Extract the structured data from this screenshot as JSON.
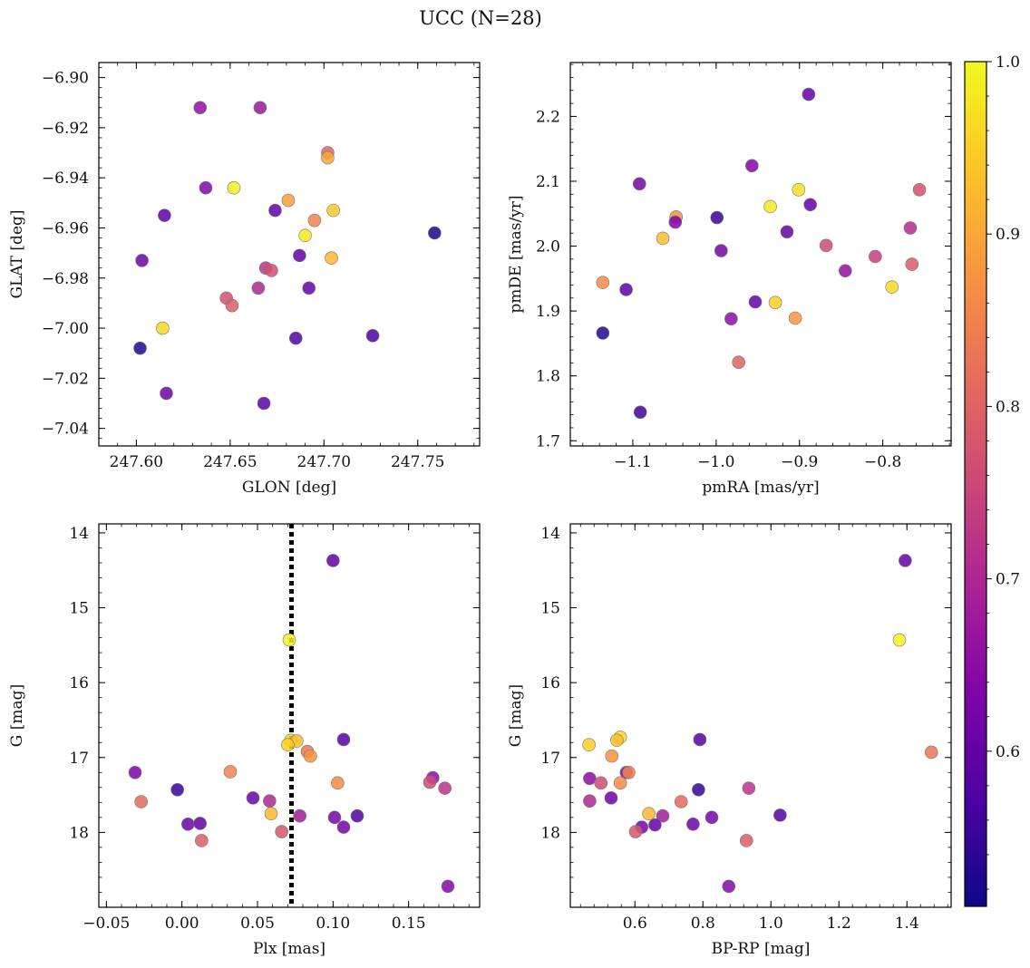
{
  "figure_title": "UCC (N=28)",
  "colorbar": {
    "tick_labels": [
      "0.6",
      "0.7",
      "0.8",
      "0.9",
      "1.0"
    ],
    "tick_values": [
      0.6,
      0.7,
      0.8,
      0.9,
      1.0
    ],
    "range": [
      0.51,
      1.0
    ],
    "colormap": "plasma"
  },
  "chart_data": [
    {
      "type": "scatter",
      "xlabel": "GLON [deg]",
      "ylabel": "GLAT [deg]",
      "xlim": [
        247.58,
        247.783
      ],
      "ylim": [
        -7.047,
        -6.894
      ],
      "xticks": [
        247.6,
        247.65,
        247.7,
        247.75
      ],
      "xtick_labels": [
        "247.60",
        "247.65",
        "247.70",
        "247.75"
      ],
      "yticks": [
        -6.9,
        -6.92,
        -6.94,
        -6.96,
        -6.98,
        -7.0,
        -7.02,
        -7.04
      ],
      "ytick_labels": [
        "−6.90",
        "−6.92",
        "−6.94",
        "−6.96",
        "−6.98",
        "−7.00",
        "−7.02",
        "−7.04"
      ],
      "points": [
        {
          "x": 247.634,
          "y": -6.912,
          "c": 0.66
        },
        {
          "x": 247.666,
          "y": -6.912,
          "c": 0.67
        },
        {
          "x": 247.702,
          "y": -6.93,
          "c": 0.8
        },
        {
          "x": 247.702,
          "y": -6.932,
          "c": 0.9
        },
        {
          "x": 247.652,
          "y": -6.944,
          "c": 0.99
        },
        {
          "x": 247.637,
          "y": -6.944,
          "c": 0.64
        },
        {
          "x": 247.681,
          "y": -6.949,
          "c": 0.89
        },
        {
          "x": 247.705,
          "y": -6.953,
          "c": 0.94
        },
        {
          "x": 247.674,
          "y": -6.953,
          "c": 0.6
        },
        {
          "x": 247.615,
          "y": -6.955,
          "c": 0.59
        },
        {
          "x": 247.695,
          "y": -6.957,
          "c": 0.85
        },
        {
          "x": 247.69,
          "y": -6.963,
          "c": 0.98
        },
        {
          "x": 247.759,
          "y": -6.962,
          "c": 0.52
        },
        {
          "x": 247.687,
          "y": -6.971,
          "c": 0.6
        },
        {
          "x": 247.704,
          "y": -6.972,
          "c": 0.92
        },
        {
          "x": 247.603,
          "y": -6.973,
          "c": 0.61
        },
        {
          "x": 247.669,
          "y": -6.976,
          "c": 0.72
        },
        {
          "x": 247.672,
          "y": -6.977,
          "c": 0.77
        },
        {
          "x": 247.692,
          "y": -6.984,
          "c": 0.6
        },
        {
          "x": 247.665,
          "y": -6.984,
          "c": 0.7
        },
        {
          "x": 247.648,
          "y": -6.988,
          "c": 0.77
        },
        {
          "x": 247.651,
          "y": -6.991,
          "c": 0.79
        },
        {
          "x": 247.614,
          "y": -7.0,
          "c": 0.96
        },
        {
          "x": 247.726,
          "y": -7.003,
          "c": 0.57
        },
        {
          "x": 247.685,
          "y": -7.004,
          "c": 0.58
        },
        {
          "x": 247.602,
          "y": -7.008,
          "c": 0.53
        },
        {
          "x": 247.616,
          "y": -7.026,
          "c": 0.61
        },
        {
          "x": 247.668,
          "y": -7.03,
          "c": 0.59
        }
      ]
    },
    {
      "type": "scatter",
      "xlabel": "pmRA [mas/yr]",
      "ylabel": "pmDE [mas/yr]",
      "xlim": [
        -1.175,
        -0.718
      ],
      "ylim": [
        1.692,
        2.283
      ],
      "xticks": [
        -1.1,
        -1.0,
        -0.9,
        -0.8
      ],
      "xtick_labels": [
        "−1.1",
        "−1.0",
        "−0.9",
        "−0.8"
      ],
      "yticks": [
        1.7,
        1.8,
        1.9,
        2.0,
        2.1,
        2.2
      ],
      "ytick_labels": [
        "1.7",
        "1.8",
        "1.9",
        "2.0",
        "2.1",
        "2.2"
      ],
      "points": [
        {
          "x": -0.889,
          "y": 2.234,
          "c": 0.6
        },
        {
          "x": -0.957,
          "y": 2.124,
          "c": 0.64
        },
        {
          "x": -1.092,
          "y": 2.096,
          "c": 0.62
        },
        {
          "x": -0.901,
          "y": 2.087,
          "c": 0.97
        },
        {
          "x": -0.756,
          "y": 2.087,
          "c": 0.77
        },
        {
          "x": -0.887,
          "y": 2.064,
          "c": 0.6
        },
        {
          "x": -0.935,
          "y": 2.061,
          "c": 0.98
        },
        {
          "x": -1.048,
          "y": 2.045,
          "c": 0.87
        },
        {
          "x": -0.999,
          "y": 2.044,
          "c": 0.55
        },
        {
          "x": -1.049,
          "y": 2.037,
          "c": 0.63
        },
        {
          "x": -0.767,
          "y": 2.028,
          "c": 0.71
        },
        {
          "x": -0.915,
          "y": 2.022,
          "c": 0.6
        },
        {
          "x": -1.064,
          "y": 2.012,
          "c": 0.93
        },
        {
          "x": -0.868,
          "y": 2.001,
          "c": 0.76
        },
        {
          "x": -0.994,
          "y": 1.993,
          "c": 0.62
        },
        {
          "x": -0.809,
          "y": 1.984,
          "c": 0.74
        },
        {
          "x": -0.765,
          "y": 1.972,
          "c": 0.79
        },
        {
          "x": -0.845,
          "y": 1.962,
          "c": 0.66
        },
        {
          "x": -1.136,
          "y": 1.944,
          "c": 0.86
        },
        {
          "x": -0.789,
          "y": 1.937,
          "c": 0.96
        },
        {
          "x": -1.108,
          "y": 1.933,
          "c": 0.59
        },
        {
          "x": -0.953,
          "y": 1.914,
          "c": 0.6
        },
        {
          "x": -0.929,
          "y": 1.913,
          "c": 0.95
        },
        {
          "x": -0.905,
          "y": 1.889,
          "c": 0.88
        },
        {
          "x": -0.982,
          "y": 1.888,
          "c": 0.65
        },
        {
          "x": -1.136,
          "y": 1.866,
          "c": 0.53
        },
        {
          "x": -0.973,
          "y": 1.821,
          "c": 0.8
        },
        {
          "x": -1.091,
          "y": 1.744,
          "c": 0.56
        }
      ]
    },
    {
      "type": "scatter",
      "xlabel": "Plx [mas]",
      "ylabel": "G [mag]",
      "xlim": [
        -0.055,
        0.197
      ],
      "ylim": [
        19.0,
        13.88
      ],
      "y_inverted": true,
      "xticks": [
        -0.05,
        0.0,
        0.05,
        0.1,
        0.15
      ],
      "xtick_labels": [
        "−0.05",
        "0.00",
        "0.05",
        "0.10",
        "0.15"
      ],
      "yticks": [
        14,
        15,
        16,
        17,
        18
      ],
      "ytick_labels": [
        "14",
        "15",
        "16",
        "17",
        "18"
      ],
      "vline": {
        "x": 0.0725,
        "style": "dotted",
        "color": "#000000"
      },
      "points": [
        {
          "x": 0.1,
          "y": 14.37,
          "c": 0.6
        },
        {
          "x": 0.071,
          "y": 15.43,
          "c": 0.99
        },
        {
          "x": 0.072,
          "y": 16.77,
          "c": 0.96
        },
        {
          "x": 0.076,
          "y": 16.78,
          "c": 0.93
        },
        {
          "x": 0.07,
          "y": 16.83,
          "c": 0.95
        },
        {
          "x": 0.083,
          "y": 16.92,
          "c": 0.83
        },
        {
          "x": 0.085,
          "y": 16.98,
          "c": 0.87
        },
        {
          "x": 0.107,
          "y": 16.76,
          "c": 0.58
        },
        {
          "x": -0.031,
          "y": 17.2,
          "c": 0.63
        },
        {
          "x": 0.032,
          "y": 17.19,
          "c": 0.85
        },
        {
          "x": 0.103,
          "y": 17.34,
          "c": 0.86
        },
        {
          "x": 0.166,
          "y": 17.27,
          "c": 0.65
        },
        {
          "x": 0.164,
          "y": 17.33,
          "c": 0.76
        },
        {
          "x": 0.174,
          "y": 17.41,
          "c": 0.72
        },
        {
          "x": -0.003,
          "y": 17.43,
          "c": 0.55
        },
        {
          "x": -0.027,
          "y": 17.59,
          "c": 0.81
        },
        {
          "x": 0.047,
          "y": 17.54,
          "c": 0.61
        },
        {
          "x": 0.058,
          "y": 17.58,
          "c": 0.7
        },
        {
          "x": 0.059,
          "y": 17.75,
          "c": 0.92
        },
        {
          "x": 0.078,
          "y": 17.78,
          "c": 0.68
        },
        {
          "x": 0.101,
          "y": 17.8,
          "c": 0.62
        },
        {
          "x": 0.116,
          "y": 17.78,
          "c": 0.58
        },
        {
          "x": 0.004,
          "y": 17.89,
          "c": 0.61
        },
        {
          "x": 0.012,
          "y": 17.88,
          "c": 0.6
        },
        {
          "x": 0.107,
          "y": 17.93,
          "c": 0.62
        },
        {
          "x": 0.066,
          "y": 17.99,
          "c": 0.78
        },
        {
          "x": 0.013,
          "y": 18.11,
          "c": 0.79
        },
        {
          "x": 0.176,
          "y": 18.72,
          "c": 0.64
        }
      ]
    },
    {
      "type": "scatter",
      "xlabel": "BP-RP [mag]",
      "ylabel": "G [mag]",
      "xlim": [
        0.41,
        1.53
      ],
      "ylim": [
        19.0,
        13.88
      ],
      "y_inverted": true,
      "xticks": [
        0.6,
        0.8,
        1.0,
        1.2,
        1.4
      ],
      "xtick_labels": [
        "0.6",
        "0.8",
        "1.0",
        "1.2",
        "1.4"
      ],
      "yticks": [
        14,
        15,
        16,
        17,
        18
      ],
      "ytick_labels": [
        "14",
        "15",
        "16",
        "17",
        "18"
      ],
      "points": [
        {
          "x": 1.395,
          "y": 14.37,
          "c": 0.6
        },
        {
          "x": 1.378,
          "y": 15.43,
          "c": 0.99
        },
        {
          "x": 0.791,
          "y": 16.76,
          "c": 0.58
        },
        {
          "x": 0.557,
          "y": 16.73,
          "c": 0.96
        },
        {
          "x": 0.547,
          "y": 16.77,
          "c": 0.93
        },
        {
          "x": 0.465,
          "y": 16.83,
          "c": 0.95
        },
        {
          "x": 0.532,
          "y": 16.98,
          "c": 0.87
        },
        {
          "x": 1.472,
          "y": 16.93,
          "c": 0.83
        },
        {
          "x": 0.575,
          "y": 17.2,
          "c": 0.63
        },
        {
          "x": 0.582,
          "y": 17.2,
          "c": 0.85
        },
        {
          "x": 0.467,
          "y": 17.28,
          "c": 0.65
        },
        {
          "x": 0.5,
          "y": 17.34,
          "c": 0.76
        },
        {
          "x": 0.557,
          "y": 17.34,
          "c": 0.86
        },
        {
          "x": 0.935,
          "y": 17.41,
          "c": 0.72
        },
        {
          "x": 0.787,
          "y": 17.43,
          "c": 0.55
        },
        {
          "x": 0.53,
          "y": 17.54,
          "c": 0.61
        },
        {
          "x": 0.467,
          "y": 17.58,
          "c": 0.7
        },
        {
          "x": 0.736,
          "y": 17.59,
          "c": 0.81
        },
        {
          "x": 0.641,
          "y": 17.75,
          "c": 0.92
        },
        {
          "x": 0.682,
          "y": 17.78,
          "c": 0.68
        },
        {
          "x": 0.826,
          "y": 17.8,
          "c": 0.62
        },
        {
          "x": 1.027,
          "y": 17.77,
          "c": 0.58
        },
        {
          "x": 0.771,
          "y": 17.89,
          "c": 0.61
        },
        {
          "x": 0.659,
          "y": 17.9,
          "c": 0.6
        },
        {
          "x": 0.62,
          "y": 17.93,
          "c": 0.62
        },
        {
          "x": 0.602,
          "y": 17.99,
          "c": 0.78
        },
        {
          "x": 0.928,
          "y": 18.11,
          "c": 0.79
        },
        {
          "x": 0.876,
          "y": 18.72,
          "c": 0.64
        }
      ]
    }
  ]
}
